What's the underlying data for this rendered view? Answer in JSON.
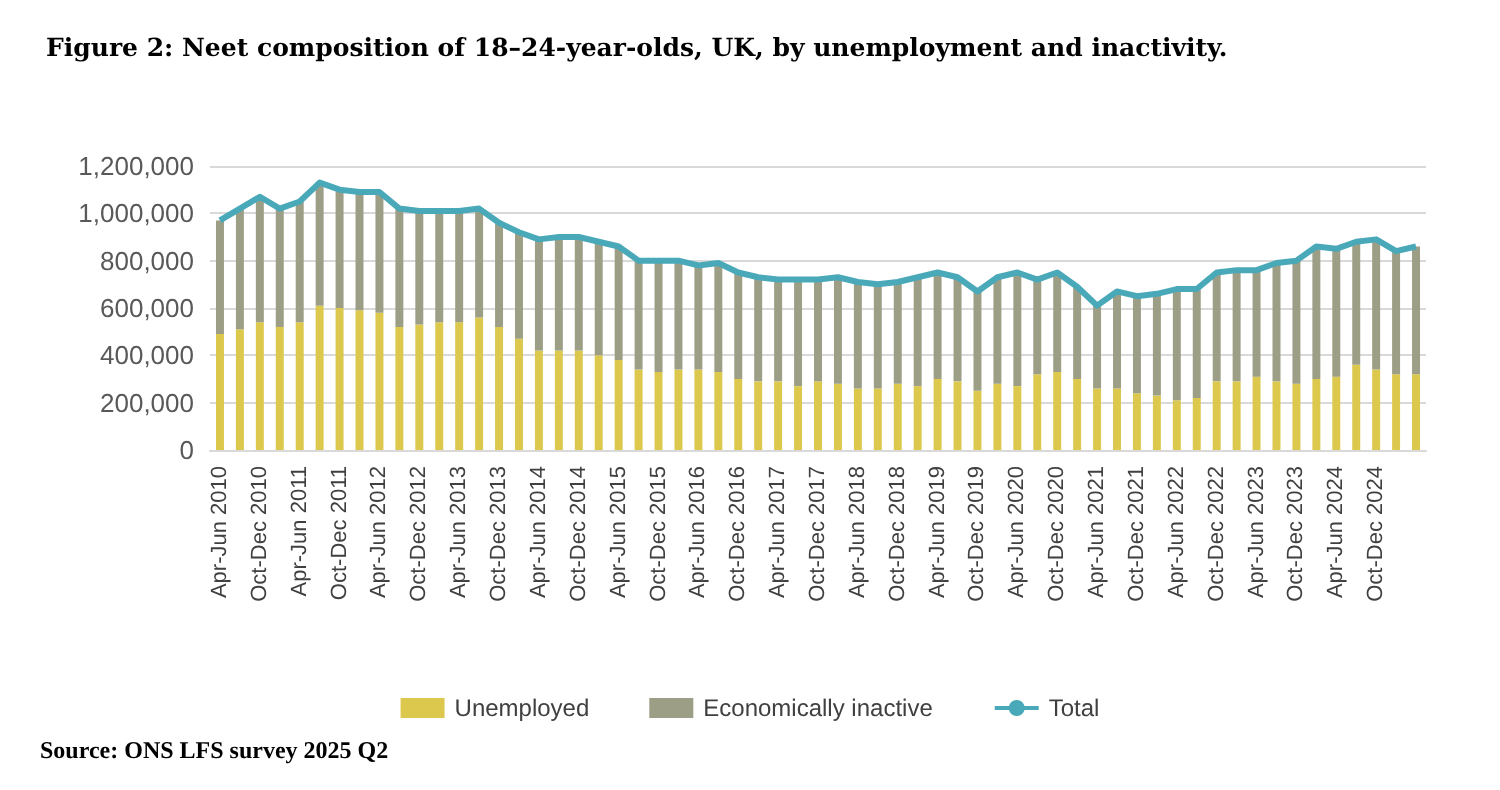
{
  "chart_data": {
    "type": "bar",
    "title": "Figure 2: Neet composition of 18–24-year-olds, UK, by unemployment and inactivity.",
    "categories": [
      "Apr-Jun 2010",
      null,
      "Oct-Dec 2010",
      null,
      "Apr-Jun 2011",
      null,
      "Oct-Dec 2011",
      null,
      "Apr-Jun 2012",
      null,
      "Oct-Dec 2012",
      null,
      "Apr-Jun 2013",
      null,
      "Oct-Dec 2013",
      null,
      "Apr-Jun 2014",
      null,
      "Oct-Dec 2014",
      null,
      "Apr-Jun 2015",
      null,
      "Oct-Dec 2015",
      null,
      "Apr-Jun 2016",
      null,
      "Oct-Dec 2016",
      null,
      "Apr-Jun 2017",
      null,
      "Oct-Dec 2017",
      null,
      "Apr-Jun 2018",
      null,
      "Oct-Dec 2018",
      null,
      "Apr-Jun 2019",
      null,
      "Oct-Dec 2019",
      null,
      "Apr-Jun 2020",
      null,
      "Oct-Dec 2020",
      null,
      "Apr-Jun 2021",
      null,
      "Oct-Dec 2021",
      null,
      "Apr-Jun 2022",
      null,
      "Oct-Dec 2022",
      null,
      "Apr-Jun 2023",
      null,
      "Oct-Dec 2023",
      null,
      "Apr-Jun 2024",
      null,
      "Oct-Dec 2024",
      null,
      null
    ],
    "series": [
      {
        "name": "Unemployed",
        "color": "#dcc84c",
        "values": [
          490000,
          510000,
          540000,
          520000,
          540000,
          610000,
          600000,
          590000,
          580000,
          520000,
          530000,
          540000,
          540000,
          560000,
          520000,
          470000,
          420000,
          420000,
          420000,
          400000,
          380000,
          340000,
          330000,
          340000,
          340000,
          330000,
          300000,
          290000,
          290000,
          270000,
          290000,
          280000,
          260000,
          260000,
          280000,
          270000,
          300000,
          290000,
          250000,
          280000,
          270000,
          320000,
          330000,
          300000,
          260000,
          260000,
          240000,
          230000,
          210000,
          220000,
          290000,
          290000,
          310000,
          290000,
          280000,
          300000,
          310000,
          360000,
          340000,
          320000,
          320000
        ]
      },
      {
        "name": "Economically inactive",
        "color": "#9c9e86",
        "values": [
          480000,
          510000,
          530000,
          500000,
          510000,
          520000,
          500000,
          500000,
          510000,
          500000,
          480000,
          470000,
          470000,
          460000,
          440000,
          450000,
          470000,
          480000,
          480000,
          480000,
          480000,
          460000,
          470000,
          460000,
          440000,
          460000,
          450000,
          440000,
          430000,
          450000,
          430000,
          450000,
          450000,
          440000,
          430000,
          460000,
          450000,
          440000,
          420000,
          450000,
          480000,
          400000,
          420000,
          390000,
          350000,
          410000,
          410000,
          430000,
          470000,
          460000,
          460000,
          470000,
          450000,
          500000,
          520000,
          560000,
          540000,
          520000,
          550000,
          520000,
          540000
        ]
      },
      {
        "name": "Total",
        "type": "line",
        "color": "#4aa9b9",
        "values": [
          970000,
          1020000,
          1070000,
          1020000,
          1050000,
          1130000,
          1100000,
          1090000,
          1090000,
          1020000,
          1010000,
          1010000,
          1010000,
          1020000,
          960000,
          920000,
          890000,
          900000,
          900000,
          880000,
          860000,
          800000,
          800000,
          800000,
          780000,
          790000,
          750000,
          730000,
          720000,
          720000,
          720000,
          730000,
          710000,
          700000,
          710000,
          730000,
          750000,
          730000,
          670000,
          730000,
          750000,
          720000,
          750000,
          690000,
          610000,
          670000,
          650000,
          660000,
          680000,
          680000,
          750000,
          760000,
          760000,
          790000,
          800000,
          860000,
          850000,
          880000,
          890000,
          840000,
          860000
        ]
      }
    ],
    "stacked": true,
    "ylim": [
      0,
      1200000
    ],
    "yticks": [
      0,
      {
        "value": 200000,
        "label": "200,000"
      },
      {
        "value": 400000,
        "label": "400,000"
      },
      {
        "value": 600000,
        "label": "600,000"
      },
      {
        "value": 800000,
        "label": "800,000"
      },
      {
        "value": 1000000,
        "label": "1,000,000"
      },
      {
        "value": 1200000,
        "label": "1,200,000"
      }
    ],
    "grid": "y",
    "legend": "bottom",
    "marker": "none",
    "annotations": [
      "Source: ONS LFS survey 2025 Q2"
    ]
  }
}
